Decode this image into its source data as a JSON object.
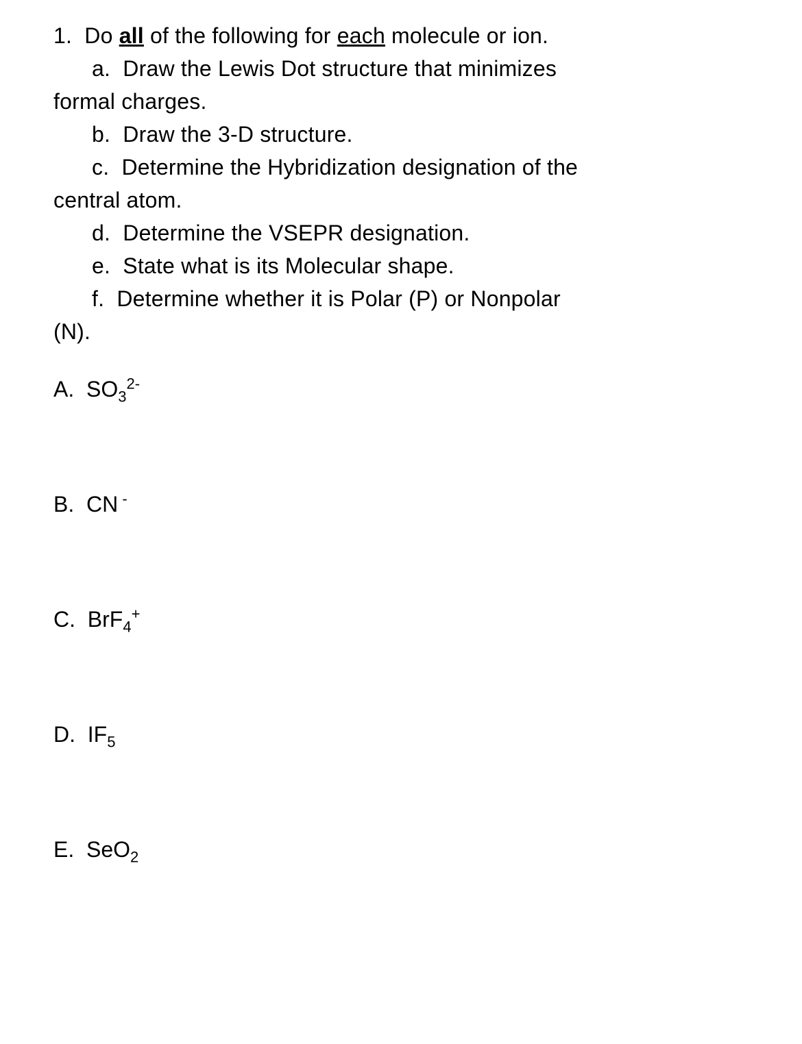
{
  "q1": {
    "number": "1.",
    "intro_pre": "Do ",
    "intro_all": "all",
    "intro_mid": " of the following for ",
    "intro_each": "each",
    "intro_post": " molecule or ion.",
    "a": {
      "label": "a.",
      "text1": "Draw the Lewis Dot structure that minimizes",
      "text2": "formal charges."
    },
    "b": {
      "label": "b.",
      "text": "Draw the 3-D structure."
    },
    "c": {
      "label": "c.",
      "text1": "Determine the Hybridization designation of the",
      "text2": "central atom."
    },
    "d": {
      "label": "d.",
      "text": "Determine the VSEPR designation."
    },
    "e": {
      "label": "e.",
      "text": "State what is its Molecular shape."
    },
    "f": {
      "label": "f.",
      "text1": "Determine whether it is Polar (P) or Nonpolar",
      "text2": "(N)."
    }
  },
  "items": {
    "A": {
      "label": "A.",
      "base": "SO",
      "sub": "3",
      "sup": "2-"
    },
    "B": {
      "label": "B.",
      "base": "CN",
      "sub": "",
      "sup": " -"
    },
    "C": {
      "label": "C.",
      "base": "BrF",
      "sub": "4",
      "sup": "+"
    },
    "D": {
      "label": "D.",
      "base": "IF",
      "sub": "5",
      "sup": ""
    },
    "E": {
      "label": "E.",
      "base": "SeO",
      "sub": "2",
      "sup": ""
    }
  },
  "colors": {
    "text": "#000000",
    "background": "#ffffff"
  },
  "font": {
    "size_main": 32,
    "size_subsup": 22,
    "family": "Arial, Helvetica, sans-serif"
  }
}
